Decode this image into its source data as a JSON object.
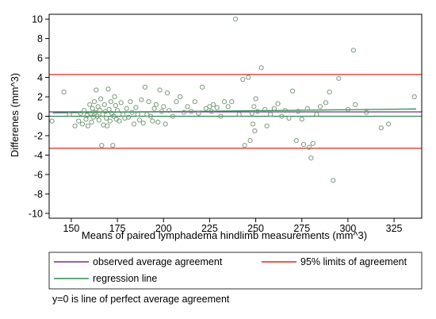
{
  "chart_data": {
    "type": "scatter",
    "title": "",
    "xlabel": "Means of paired lymphadema hindlimb measurements (mm^3)",
    "ylabel": "Differenes (mm^3)",
    "xlim": [
      138,
      340
    ],
    "ylim": [
      -10.5,
      10.5
    ],
    "x_ticks": [
      150,
      175,
      200,
      225,
      250,
      275,
      300,
      325
    ],
    "y_ticks": [
      10,
      8,
      6,
      4,
      2,
      0,
      -2,
      -4,
      -6,
      -8,
      -10
    ],
    "grid": false,
    "zero_line": {
      "y": 0,
      "color": "#2e8b57"
    },
    "observed_average_agreement": {
      "y": 0.45,
      "color": "#7b2d8e"
    },
    "limits_of_agreement": {
      "upper": 4.3,
      "lower": -3.3,
      "color": "#e8231f"
    },
    "regression_line": {
      "x": [
        140,
        337
      ],
      "y": [
        0.35,
        0.75
      ],
      "color": "#2e8b57"
    },
    "point_color": "#7a9a7a",
    "points": [
      [
        139.5,
        -0.5
      ],
      [
        146,
        2.5
      ],
      [
        149,
        0.2
      ],
      [
        152,
        -1.0
      ],
      [
        154,
        -0.5
      ],
      [
        155,
        0.3
      ],
      [
        156,
        -0.8
      ],
      [
        157,
        0.6
      ],
      [
        158,
        -0.3
      ],
      [
        158.5,
        0.1
      ],
      [
        159,
        -1.0
      ],
      [
        160,
        1.2
      ],
      [
        160.5,
        0.3
      ],
      [
        161,
        -0.6
      ],
      [
        161.5,
        0.8
      ],
      [
        162,
        -0.1
      ],
      [
        162.5,
        1.5
      ],
      [
        163,
        0.4
      ],
      [
        163.5,
        2.7
      ],
      [
        164,
        0.0
      ],
      [
        164.5,
        1.0
      ],
      [
        165,
        -0.4
      ],
      [
        165.5,
        0.6
      ],
      [
        166,
        1.8
      ],
      [
        166.5,
        -3.0
      ],
      [
        167,
        0.2
      ],
      [
        167.5,
        -0.9
      ],
      [
        168,
        1.2
      ],
      [
        168.5,
        0.5
      ],
      [
        169,
        -0.2
      ],
      [
        169.5,
        -1.0
      ],
      [
        170,
        2.8
      ],
      [
        170.5,
        0.7
      ],
      [
        171,
        -0.5
      ],
      [
        171.5,
        1.5
      ],
      [
        172,
        0.3
      ],
      [
        172.5,
        -3.0
      ],
      [
        173,
        0.0
      ],
      [
        173.5,
        2.0
      ],
      [
        174,
        1.1
      ],
      [
        174.5,
        -0.3
      ],
      [
        175,
        0.6
      ],
      [
        176,
        -0.5
      ],
      [
        177,
        1.4
      ],
      [
        178,
        0.2
      ],
      [
        179,
        -0.2
      ],
      [
        180,
        0.8
      ],
      [
        181,
        -0.1
      ],
      [
        182,
        1.5
      ],
      [
        183,
        0.4
      ],
      [
        184,
        -0.8
      ],
      [
        185,
        0.9
      ],
      [
        186,
        0.2
      ],
      [
        187,
        -0.4
      ],
      [
        188,
        1.7
      ],
      [
        189,
        -0.7
      ],
      [
        190,
        3.0
      ],
      [
        191,
        0.2
      ],
      [
        192,
        1.5
      ],
      [
        193,
        0.0
      ],
      [
        194,
        -0.5
      ],
      [
        195,
        0.8
      ],
      [
        196,
        1.2
      ],
      [
        197,
        -0.6
      ],
      [
        198,
        2.7
      ],
      [
        199,
        0.5
      ],
      [
        200,
        1.0
      ],
      [
        201,
        -0.8
      ],
      [
        202,
        2.4
      ],
      [
        203,
        0.6
      ],
      [
        205,
        0.0
      ],
      [
        207,
        1.5
      ],
      [
        209,
        2.0
      ],
      [
        211,
        0.4
      ],
      [
        213,
        1.0
      ],
      [
        215,
        0.5
      ],
      [
        217,
        1.5
      ],
      [
        219,
        0.3
      ],
      [
        221,
        3.0
      ],
      [
        223,
        0.8
      ],
      [
        225,
        1.0
      ],
      [
        226,
        0.5
      ],
      [
        227,
        1.2
      ],
      [
        229,
        0.9
      ],
      [
        231,
        0.0
      ],
      [
        233,
        1.5
      ],
      [
        235,
        1.0
      ],
      [
        237,
        1.5
      ],
      [
        239,
        10.0
      ],
      [
        241,
        0.2
      ],
      [
        243,
        3.8
      ],
      [
        244,
        -3.0
      ],
      [
        246,
        4.0
      ],
      [
        247,
        -2.5
      ],
      [
        248,
        0.3
      ],
      [
        248.5,
        -0.8
      ],
      [
        249,
        1.0
      ],
      [
        249.5,
        -1.5
      ],
      [
        250,
        1.8
      ],
      [
        251,
        0.5
      ],
      [
        253,
        5.0
      ],
      [
        255,
        0.7
      ],
      [
        256,
        -1.0
      ],
      [
        258,
        0.2
      ],
      [
        260,
        0.8
      ],
      [
        262,
        1.3
      ],
      [
        264,
        0.0
      ],
      [
        266,
        0.6
      ],
      [
        268,
        -0.2
      ],
      [
        270,
        2.6
      ],
      [
        272,
        -2.5
      ],
      [
        273,
        0.5
      ],
      [
        275,
        -0.3
      ],
      [
        276,
        -2.9
      ],
      [
        278,
        0.8
      ],
      [
        279,
        -3.2
      ],
      [
        280,
        -4.3
      ],
      [
        281,
        -2.8
      ],
      [
        283,
        0.2
      ],
      [
        285,
        1.0
      ],
      [
        288,
        1.4
      ],
      [
        290,
        2.5
      ],
      [
        292,
        -6.6
      ],
      [
        295,
        3.9
      ],
      [
        300,
        0.7
      ],
      [
        303,
        6.8
      ],
      [
        304,
        1.2
      ],
      [
        310,
        0.4
      ],
      [
        318,
        -1.2
      ],
      [
        322,
        -0.8
      ],
      [
        336,
        2.0
      ]
    ],
    "legend": [
      {
        "label": "observed average agreement",
        "color": "#7b2d8e"
      },
      {
        "label": "95% limits of agreement",
        "color": "#e8231f"
      },
      {
        "label": "regression line",
        "color": "#2e8b57"
      }
    ],
    "note": "y=0 is line of perfect average agreement"
  }
}
